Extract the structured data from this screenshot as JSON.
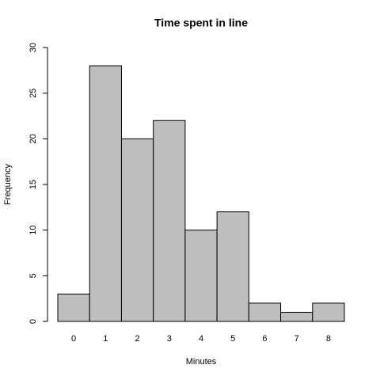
{
  "chart_data": {
    "type": "histogram",
    "title": "Time spent in line",
    "xlabel": "Minutes",
    "ylabel": "Frequency",
    "bins": [
      -0.5,
      0.5,
      1.5,
      2.5,
      3.5,
      4.5,
      5.5,
      6.5,
      7.5,
      8.5
    ],
    "counts": [
      3,
      28,
      20,
      22,
      10,
      12,
      2,
      1,
      2
    ],
    "color": "#bebebe",
    "xlim": [
      -0.5,
      8.5
    ],
    "xticks": [
      0,
      1,
      2,
      3,
      4,
      5,
      6,
      7,
      8
    ],
    "ylim": [
      0,
      30
    ],
    "yticks": [
      0,
      5,
      10,
      15,
      20,
      25,
      30
    ]
  }
}
